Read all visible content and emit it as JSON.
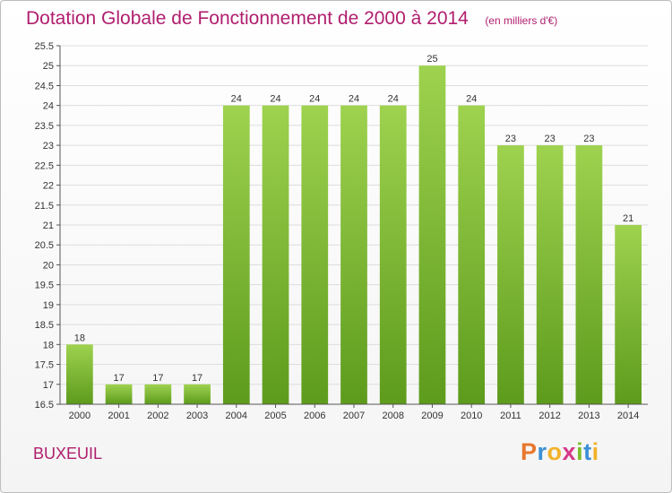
{
  "header": {
    "title": "Dotation Globale de Fonctionnement de 2000 à 2014",
    "unit_note": "(en milliers d'€)"
  },
  "footer": {
    "commune": "BUXEUIL",
    "logo_letters": [
      "P",
      "r",
      "o",
      "x",
      "i",
      "t",
      "i"
    ],
    "logo_colors": [
      "#e8772e",
      "#3b8fd6",
      "#f2b22b",
      "#d63a8a",
      "#7bbf2b",
      "#3b8fd6",
      "#f2b22b"
    ]
  },
  "colors": {
    "title": "#b01e6e",
    "bar_light": "#9ed24f",
    "bar_dark": "#5d9b1c",
    "grid": "#dddddd",
    "axis": "#555555"
  },
  "chart_data": {
    "type": "bar",
    "title": "Dotation Globale de Fonctionnement de 2000 à 2014",
    "subtitle": "(en milliers d'€)",
    "categories": [
      "2000",
      "2001",
      "2002",
      "2003",
      "2004",
      "2005",
      "2006",
      "2007",
      "2008",
      "2009",
      "2010",
      "2011",
      "2012",
      "2013",
      "2014"
    ],
    "values": [
      18,
      17,
      17,
      17,
      24,
      24,
      24,
      24,
      24,
      25,
      24,
      23,
      23,
      23,
      21
    ],
    "data_labels": [
      "18",
      "17",
      "17",
      "17",
      "24",
      "24",
      "24",
      "24",
      "24",
      "25",
      "24",
      "23",
      "23",
      "23",
      "21"
    ],
    "ylim": [
      16.5,
      25.5
    ],
    "yticks": [
      "16.5",
      "17",
      "17.5",
      "18",
      "18.5",
      "19",
      "19.5",
      "20",
      "20.5",
      "21",
      "21.5",
      "22",
      "22.5",
      "23",
      "23.5",
      "24",
      "24.5",
      "25",
      "25.5"
    ],
    "grid": true,
    "xlabel": "",
    "ylabel": ""
  }
}
